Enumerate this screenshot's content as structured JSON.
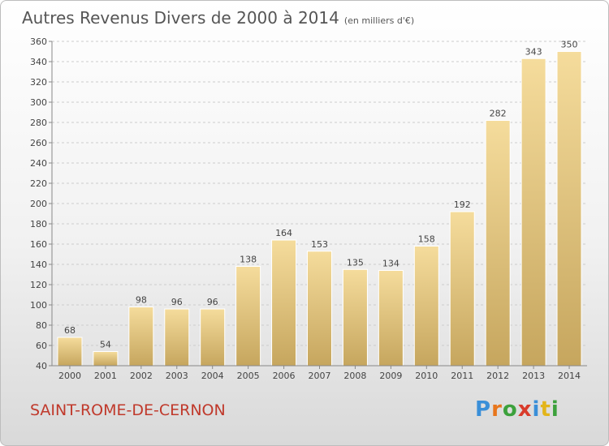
{
  "header": {
    "title": "Autres Revenus Divers de 2000 à 2014",
    "subtitle": "(en milliers d'€)"
  },
  "footer": {
    "city": "SAINT-ROME-DE-CERNON",
    "logo": "Proxiti"
  },
  "colors": {
    "bar_light": "#f5dc9c",
    "bar_dark": "#c6a65e",
    "grid": "#cccccc",
    "city": "#c0392b"
  },
  "chart_data": {
    "type": "bar",
    "title": "Autres Revenus Divers de 2000 à 2014",
    "subtitle": "(en milliers d'€)",
    "categories": [
      "2000",
      "2001",
      "2002",
      "2003",
      "2004",
      "2005",
      "2006",
      "2007",
      "2008",
      "2009",
      "2010",
      "2011",
      "2012",
      "2013",
      "2014"
    ],
    "values": [
      68,
      54,
      98,
      96,
      96,
      138,
      164,
      153,
      135,
      134,
      158,
      192,
      282,
      343,
      350
    ],
    "ylim": [
      40,
      360
    ],
    "yticks": [
      40,
      60,
      80,
      100,
      120,
      140,
      160,
      180,
      200,
      220,
      240,
      260,
      280,
      300,
      320,
      340,
      360
    ],
    "grid": true,
    "xlabel": "",
    "ylabel": ""
  }
}
